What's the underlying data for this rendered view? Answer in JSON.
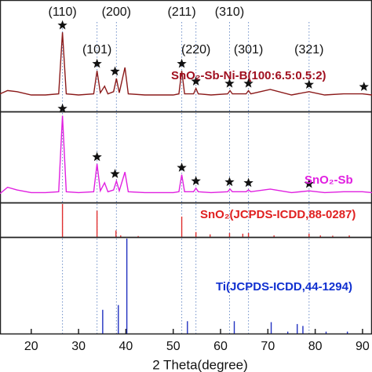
{
  "chart_data": [
    {
      "type": "line",
      "label": "SnO₂-Sb-Ni-B(100:6.5:0.5:2)",
      "color": "#8b1a1a",
      "label_color": "#a01020",
      "xlim": [
        13.4,
        92
      ],
      "ylim": [
        0,
        100
      ],
      "x": [
        13.4,
        15,
        17,
        20,
        23,
        25.8,
        26.6,
        27.4,
        30,
        33.2,
        33.9,
        34.6,
        35.5,
        36.2,
        37.4,
        38,
        38.6,
        39.8,
        40.5,
        44,
        50,
        51.2,
        51.8,
        52.4,
        54.3,
        54.8,
        55.3,
        58,
        61.5,
        62,
        62.5,
        65.4,
        65.9,
        66.4,
        70.5,
        75,
        78.7,
        82,
        86,
        90,
        92
      ],
      "values": [
        16,
        19,
        18,
        15,
        15,
        16,
        72,
        16,
        15,
        16,
        37,
        17,
        23,
        16,
        18,
        30,
        17,
        40,
        16,
        15,
        15,
        16,
        37,
        16,
        16,
        21,
        16,
        15,
        16,
        19,
        16,
        16,
        19,
        16,
        20,
        15,
        18,
        15,
        16,
        16,
        15
      ],
      "stars": [
        26.6,
        33.9,
        37.7,
        51.8,
        54.8,
        61.9,
        65.9,
        78.7,
        90.3
      ],
      "peak_labels": [
        {
          "text": "(110)",
          "x": 26.6
        },
        {
          "text": "(101)",
          "x": 33.9
        },
        {
          "text": "(200)",
          "x": 38.0
        },
        {
          "text": "(211)",
          "x": 51.8
        },
        {
          "text": "(220)",
          "x": 54.8
        },
        {
          "text": "(310)",
          "x": 61.9
        },
        {
          "text": "(301)",
          "x": 65.9
        },
        {
          "text": "(321)",
          "x": 78.7
        }
      ]
    },
    {
      "type": "line",
      "label": "SnO₂-Sb",
      "color": "#e020e0",
      "label_color": "#e020e0",
      "xlim": [
        13.4,
        92
      ],
      "ylim": [
        0,
        100
      ],
      "x": [
        13.4,
        15,
        17,
        20,
        23,
        25.8,
        26.6,
        27.4,
        30,
        33.2,
        33.9,
        34.6,
        35.5,
        36.2,
        37.4,
        38,
        38.6,
        39.8,
        40.5,
        44,
        50,
        51.2,
        51.8,
        52.4,
        54.3,
        54.8,
        55.3,
        58,
        61.5,
        62,
        62.5,
        65.4,
        65.9,
        66.4,
        70.5,
        75,
        78.7,
        82,
        86,
        90,
        92
      ],
      "values": [
        10,
        17,
        14,
        11,
        11,
        12,
        97,
        12,
        11,
        12,
        43,
        13,
        22,
        12,
        14,
        24,
        13,
        34,
        12,
        11,
        11,
        12,
        31,
        12,
        12,
        16,
        12,
        11,
        12,
        15,
        12,
        12,
        14,
        12,
        15,
        11,
        13,
        11,
        12,
        12,
        11
      ],
      "stars": [
        26.6,
        33.9,
        37.7,
        51.8,
        54.8,
        61.9,
        65.9,
        78.7
      ]
    },
    {
      "type": "stick",
      "label": "SnO₂(JCPDS-ICDD,88-0287)",
      "color": "#e03030",
      "label_color": "#e02020",
      "xlim": [
        13.4,
        92
      ],
      "ylim": [
        0,
        100
      ],
      "x": [
        26.6,
        33.9,
        37.9,
        38.9,
        42.6,
        51.8,
        54.8,
        57.8,
        61.9,
        64.7,
        65.9,
        71.3,
        78.7,
        81.1,
        83.7,
        87.2
      ],
      "values": [
        100,
        80,
        20,
        5,
        3,
        62,
        15,
        8,
        12,
        10,
        12,
        5,
        10,
        5,
        4,
        5
      ]
    },
    {
      "type": "stick",
      "label": "Ti(JCPDS-ICDD,44-1294)",
      "color": "#2030c0",
      "label_color": "#1030d0",
      "xlim": [
        13.4,
        92
      ],
      "ylim": [
        0,
        100
      ],
      "x": [
        35.1,
        38.4,
        40.2,
        53.0,
        62.9,
        70.7,
        74.2,
        76.2,
        77.4,
        82.3,
        86.8
      ],
      "values": [
        25,
        30,
        100,
        13,
        13,
        12,
        2,
        10,
        8,
        2,
        2
      ],
      "xticks": [
        20,
        30,
        40,
        50,
        60,
        70,
        80,
        90
      ],
      "xlabel": "2 Theta(degree)"
    }
  ]
}
